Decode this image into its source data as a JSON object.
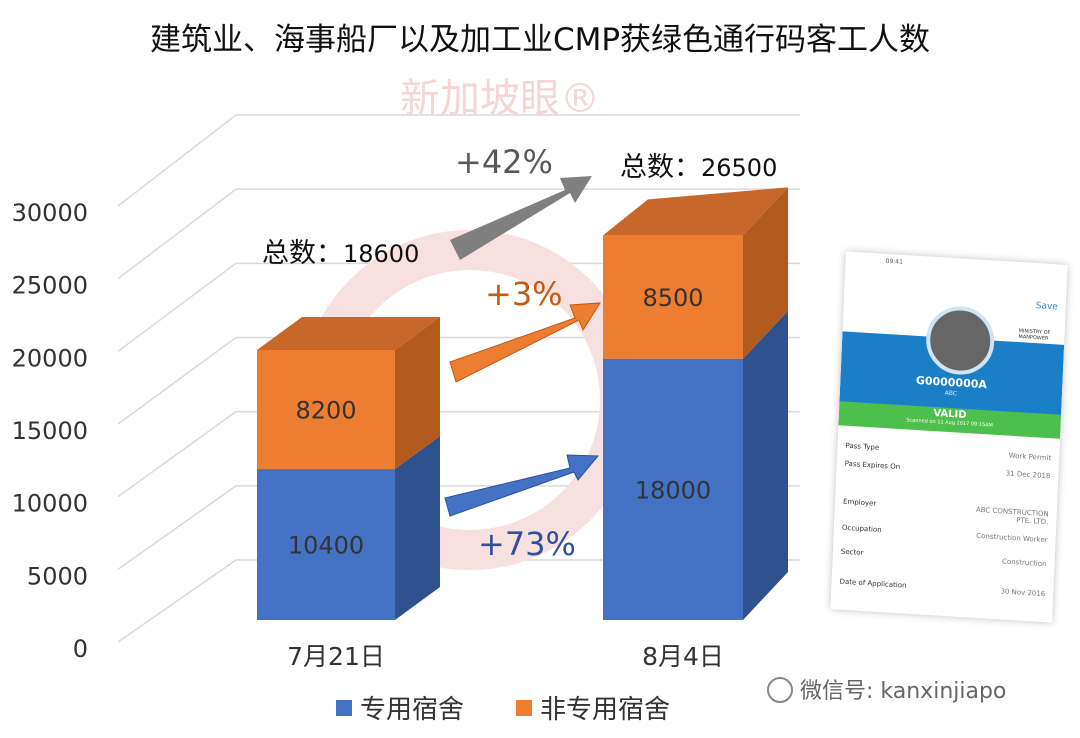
{
  "chart_data": {
    "type": "bar",
    "stacked": true,
    "three_d": true,
    "title": "建筑业、海事船厂以及加工业CMP获绿色通行码客工人数",
    "categories": [
      "7月21日",
      "8月4日"
    ],
    "series": [
      {
        "name": "专用宿舍",
        "values": [
          10400,
          18000
        ],
        "color": "#4472c4"
      },
      {
        "name": "非专用宿舍",
        "values": [
          8200,
          8500
        ],
        "color": "#ed7d31"
      }
    ],
    "totals": [
      {
        "label": "总数：",
        "value": "18600"
      },
      {
        "label": "总数：",
        "value": "26500"
      }
    ],
    "annotations": [
      {
        "text": "+42%",
        "color": "#7f7f7f"
      },
      {
        "text": "+3%",
        "color": "#c55a11"
      },
      {
        "text": "+73%",
        "color": "#2f4f9f"
      }
    ],
    "yticks": [
      "0",
      "5000",
      "10000",
      "15000",
      "20000",
      "25000",
      "30000"
    ],
    "ylim": [
      0,
      30000
    ],
    "grid": true,
    "legend_position": "bottom"
  },
  "watermark": "新加坡眼®",
  "footer": {
    "wechat": "微信号: kanxinjiapo"
  },
  "card": {
    "time": "09:41",
    "save": "Save",
    "ministry": "MINISTRY OF MANPOWER",
    "pass_id": "G0000000A",
    "employer_short": "ABC",
    "status": "VALID",
    "status_sub": "Scanned on 11 Aug 2017 09:15AM",
    "rows": [
      {
        "k": "Pass Type",
        "v": "Work Permit"
      },
      {
        "k": "Pass Expires On",
        "v": "31 Dec 2018"
      },
      {
        "k": "Employer",
        "v": "ABC CONSTRUCTION PTE. LTD."
      },
      {
        "k": "Occupation",
        "v": "Construction Worker"
      },
      {
        "k": "Sector",
        "v": "Construction"
      },
      {
        "k": "Date of Application",
        "v": "30 Nov 2016"
      }
    ]
  }
}
